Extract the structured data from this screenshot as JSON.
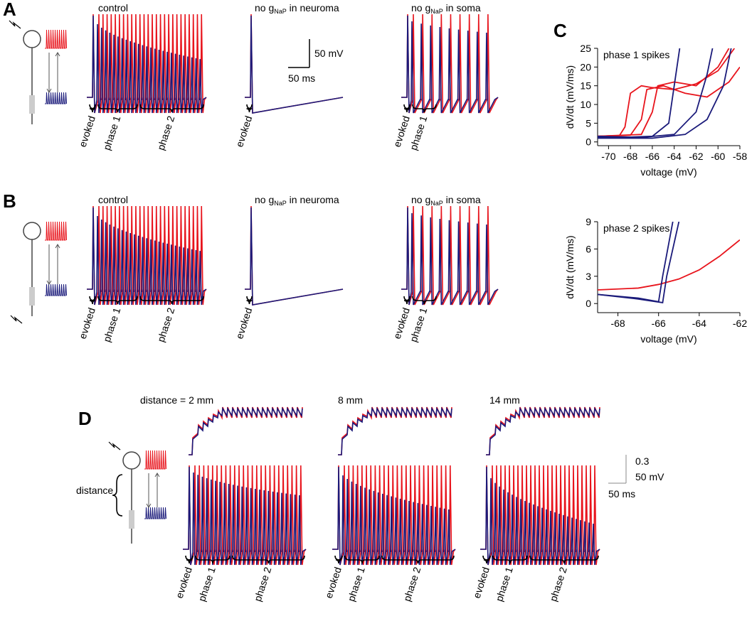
{
  "panel_A": {
    "label": "A",
    "scale_bar": [
      "50 mV",
      "50 ms"
    ],
    "conditions": [
      {
        "text": "control",
        "phases": [
          "evoked",
          "phase 1",
          "phase 2"
        ]
      },
      {
        "prefix": "no g",
        "sub": "NaP",
        "suffix": " in neuroma",
        "phases": [
          "evoked"
        ]
      },
      {
        "prefix": "no g",
        "sub": "NaP",
        "suffix": " in soma",
        "phases": [
          "evoked",
          "phase 1"
        ]
      }
    ]
  },
  "panel_B": {
    "label": "B",
    "conditions": [
      {
        "text": "control",
        "phases": [
          "evoked",
          "phase 1",
          "phase 2"
        ]
      },
      {
        "prefix": "no g",
        "sub": "NaP",
        "suffix": " in neuroma",
        "phases": [
          "evoked"
        ]
      },
      {
        "prefix": "no g",
        "sub": "NaP",
        "suffix": " in soma",
        "phases": [
          "evoked",
          "phase 1"
        ]
      }
    ]
  },
  "panel_C": {
    "label": "C"
  },
  "panel_D": {
    "label": "D",
    "distance_label": "distance",
    "scale_bar": [
      "0.3",
      "50 mV",
      "50 ms"
    ],
    "conditions": [
      {
        "text": "distance = 2 mm",
        "phases": [
          "evoked",
          "phase 1",
          "phase 2"
        ]
      },
      {
        "text": "8 mm",
        "phases": [
          "evoked",
          "phase 1",
          "phase 2"
        ]
      },
      {
        "text": "14 mm",
        "phases": [
          "evoked",
          "phase 1",
          "phase 2"
        ]
      }
    ]
  },
  "chart_data": [
    {
      "type": "line",
      "title": "phase 1 spikes",
      "xlabel": "voltage (mV)",
      "ylabel": "dV/dt (mV/ms)",
      "xlim": [
        -71,
        -58
      ],
      "ylim": [
        -1,
        25
      ],
      "xticks": [
        -70,
        -68,
        -66,
        -64,
        -62,
        -60,
        -58
      ],
      "yticks": [
        0,
        5,
        10,
        15,
        20,
        25
      ],
      "series": [
        {
          "color": "#e8141c",
          "x": [
            -71,
            -69,
            -68.5,
            -68,
            -67,
            -66,
            -64,
            -62,
            -60,
            -58.5
          ],
          "values": [
            1.5,
            1.7,
            4,
            13,
            15,
            14.5,
            14,
            15.5,
            19,
            25
          ]
        },
        {
          "color": "#e8141c",
          "x": [
            -71,
            -68,
            -67,
            -66.5,
            -65,
            -63,
            -61,
            -59,
            -58
          ],
          "values": [
            1.5,
            1.8,
            6,
            14,
            15,
            13,
            12,
            16,
            20
          ]
        },
        {
          "color": "#e8141c",
          "x": [
            -71,
            -67,
            -66,
            -65.5,
            -64,
            -62,
            -60,
            -59
          ],
          "values": [
            1.5,
            2,
            8,
            15,
            16,
            15,
            20,
            25
          ]
        },
        {
          "color": "#1a1a7a",
          "x": [
            -71,
            -68,
            -66,
            -64.5,
            -64,
            -63.5
          ],
          "values": [
            1.5,
            1.3,
            1.5,
            5,
            15,
            25
          ]
        },
        {
          "color": "#1a1a7a",
          "x": [
            -71,
            -67,
            -64,
            -62,
            -61,
            -60.5
          ],
          "values": [
            1.2,
            1.2,
            2,
            8,
            18,
            25
          ]
        },
        {
          "color": "#1a1a7a",
          "x": [
            -71,
            -66,
            -63,
            -61,
            -59.5,
            -58.8
          ],
          "values": [
            1,
            1,
            2,
            6,
            15,
            25
          ]
        }
      ]
    },
    {
      "type": "line",
      "title": "phase 2 spikes",
      "xlabel": "voltage (mV)",
      "ylabel": "dV/dt (mV/ms)",
      "xlim": [
        -69,
        -62
      ],
      "ylim": [
        -1,
        9
      ],
      "xticks": [
        -68,
        -66,
        -64,
        -62
      ],
      "yticks": [
        0,
        3,
        6,
        9
      ],
      "series": [
        {
          "color": "#e8141c",
          "x": [
            -69,
            -67,
            -66,
            -65,
            -64,
            -63,
            -62
          ],
          "values": [
            1.5,
            1.7,
            2.1,
            2.7,
            3.7,
            5.2,
            7
          ]
        },
        {
          "color": "#1a1a7a",
          "x": [
            -69,
            -67,
            -66,
            -65.8,
            -65.3
          ],
          "values": [
            1,
            0.6,
            0.2,
            3,
            9
          ]
        },
        {
          "color": "#1a1a7a",
          "x": [
            -69,
            -67,
            -65.8,
            -65.6,
            -65
          ],
          "values": [
            1,
            0.5,
            0.1,
            3,
            9
          ]
        }
      ]
    }
  ]
}
